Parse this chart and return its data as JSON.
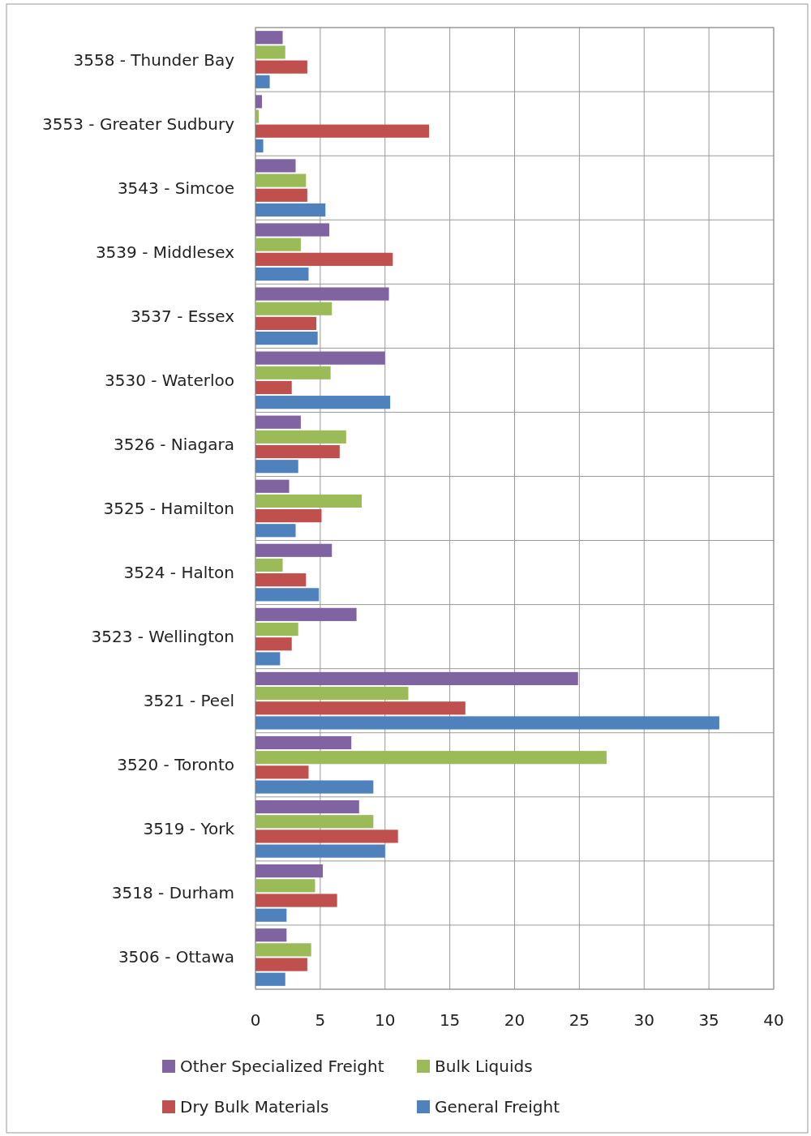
{
  "chart_data": {
    "type": "bar",
    "orientation": "horizontal",
    "categories": [
      "3558 - Thunder Bay",
      "3553 - Greater Sudbury",
      "3543 - Simcoe",
      "3539 - Middlesex",
      "3537 - Essex",
      "3530 - Waterloo",
      "3526 - Niagara",
      "3525 - Hamilton",
      "3524 - Halton",
      "3523 - Wellington",
      "3521 - Peel",
      "3520 - Toronto",
      "3519 - York",
      "3518 - Durham",
      "3506 - Ottawa"
    ],
    "series": [
      {
        "name": "Other Specialized Freight",
        "color": "#8064a2",
        "values": [
          2.1,
          0.5,
          3.1,
          5.7,
          10.3,
          10.0,
          3.5,
          2.6,
          5.9,
          7.8,
          24.9,
          7.4,
          8.0,
          5.2,
          2.4
        ]
      },
      {
        "name": "Bulk Liquids",
        "color": "#9bbb59",
        "values": [
          2.3,
          0.25,
          3.9,
          3.5,
          5.9,
          5.8,
          7.0,
          8.2,
          2.1,
          3.3,
          11.8,
          27.1,
          9.1,
          4.6,
          4.3
        ]
      },
      {
        "name": "Dry Bulk Materials",
        "color": "#c0504d",
        "values": [
          4.0,
          13.4,
          4.0,
          10.6,
          4.7,
          2.8,
          6.5,
          5.1,
          3.9,
          2.8,
          16.2,
          4.1,
          11.0,
          6.3,
          4.0
        ]
      },
      {
        "name": "General Freight",
        "color": "#4f81bd",
        "values": [
          1.1,
          0.6,
          5.4,
          4.1,
          4.8,
          10.4,
          3.3,
          3.1,
          4.9,
          1.9,
          35.8,
          9.1,
          10.0,
          2.4,
          2.3
        ]
      }
    ],
    "xlim": [
      0,
      40
    ],
    "xticks": [
      0,
      5,
      10,
      15,
      20,
      25,
      30,
      35,
      40
    ],
    "grid": true,
    "legend": "bottom"
  }
}
